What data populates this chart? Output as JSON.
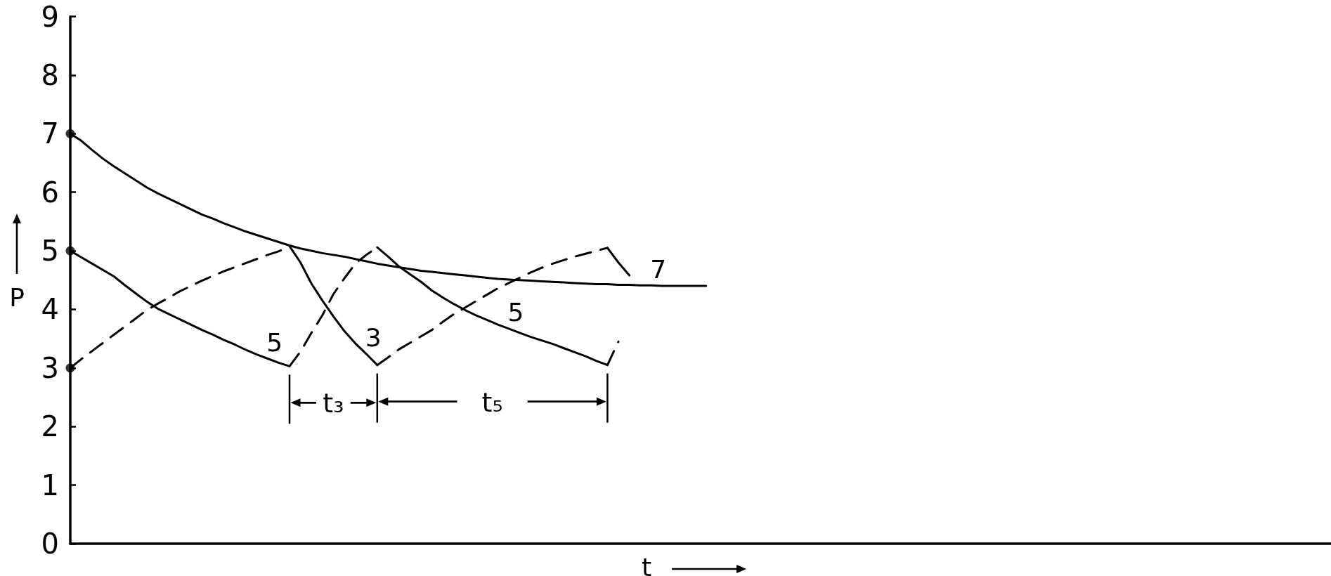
{
  "chart_data": {
    "type": "line",
    "xlabel": "t",
    "ylabel": "P",
    "categories": [
      null,
      null,
      null,
      null,
      null,
      null,
      null,
      null,
      null,
      null,
      null,
      null,
      null,
      null,
      null,
      null,
      null,
      null,
      null,
      null,
      null,
      null,
      null,
      null,
      null,
      null,
      null,
      null,
      null,
      null,
      null,
      null,
      null,
      null,
      null,
      null,
      null,
      null,
      null,
      null,
      null,
      null,
      null,
      null,
      null,
      null,
      null,
      null,
      null,
      null,
      null,
      null,
      null,
      null,
      null,
      null,
      null,
      null,
      null,
      null,
      null,
      null,
      null,
      null,
      null,
      null,
      null,
      null,
      null,
      null,
      null,
      null,
      null,
      null,
      null,
      null,
      null,
      null,
      null,
      null,
      null,
      null,
      null,
      null,
      null,
      null,
      null,
      null,
      null,
      null,
      null,
      null,
      null,
      null,
      null,
      null,
      null,
      null,
      null,
      null,
      null,
      null,
      null,
      null,
      null,
      null,
      null,
      null,
      null,
      null,
      null,
      null,
      null,
      null,
      null,
      null
    ],
    "ylim": [
      0,
      9
    ],
    "yticks": [
      0,
      1,
      2,
      3,
      4,
      5,
      6,
      7,
      8,
      9
    ],
    "tick_labels": "y",
    "grid": false,
    "legend": false,
    "series": [
      {
        "name": "7",
        "color": "#000000",
        "line_style": "solid",
        "values": [
          7.0,
          6.88,
          6.72,
          6.57,
          6.44,
          6.32,
          6.2,
          6.08,
          5.98,
          5.89,
          5.8,
          5.71,
          5.62,
          5.55,
          5.47,
          5.4,
          5.33,
          5.27,
          5.21,
          5.15,
          5.09,
          5.04,
          5.0,
          4.96,
          4.93,
          4.9,
          4.86,
          4.82,
          4.78,
          4.75,
          4.72,
          4.69,
          4.66,
          4.64,
          4.62,
          4.6,
          4.58,
          4.56,
          4.54,
          4.52,
          4.51,
          4.5,
          4.49,
          4.48,
          4.47,
          4.46,
          4.45,
          4.44,
          4.43,
          4.43,
          4.42,
          4.42,
          4.41,
          4.41,
          4.4,
          4.4,
          4.4,
          4.4,
          4.4,
          null,
          null,
          null,
          null,
          null,
          null,
          null,
          null,
          null,
          null,
          null,
          null,
          null,
          null,
          null,
          null,
          null,
          null,
          null,
          null,
          null,
          null,
          null,
          null,
          null,
          null,
          null,
          null,
          null,
          null,
          null,
          null,
          null,
          null,
          null,
          null,
          null,
          null,
          null,
          null,
          null,
          null,
          null,
          null,
          null,
          null,
          null,
          null,
          null,
          null,
          null,
          null,
          null,
          null,
          null,
          null,
          null
        ]
      },
      {
        "name": "5",
        "color": "#000000",
        "line_style": "solid",
        "values": [
          5.0,
          4.89,
          4.78,
          4.67,
          4.56,
          4.41,
          4.27,
          4.13,
          4.01,
          3.92,
          3.83,
          3.74,
          3.65,
          3.57,
          3.48,
          3.4,
          3.31,
          3.23,
          3.16,
          3.09,
          3.03,
          null,
          null,
          null,
          null,
          null,
          null,
          null,
          null,
          null,
          null,
          null,
          null,
          null,
          null,
          null,
          null,
          null,
          null,
          null,
          null,
          null,
          null,
          null,
          null,
          null,
          null,
          null,
          null,
          null,
          null,
          null,
          null,
          null,
          null,
          null,
          null,
          null,
          null,
          null,
          null,
          null,
          null,
          null,
          null,
          null,
          null,
          null,
          null,
          null,
          null,
          null,
          null,
          null,
          null,
          null,
          null,
          null,
          null,
          null,
          null,
          null,
          null,
          null,
          null,
          null,
          null,
          null,
          null,
          null,
          null,
          null,
          null,
          null,
          null,
          null,
          null,
          null,
          null,
          null,
          null,
          null,
          null,
          null,
          null,
          null,
          null,
          null,
          null,
          null,
          null,
          null,
          null,
          null,
          null,
          null
        ]
      },
      {
        "color": "#000000",
        "line_style": "dashed",
        "values": [
          3.0,
          3.15,
          3.29,
          3.43,
          3.57,
          3.71,
          3.85,
          3.99,
          4.1,
          4.2,
          4.31,
          4.4,
          4.49,
          4.57,
          4.65,
          4.72,
          4.79,
          4.86,
          4.93,
          4.99,
          5.08,
          null,
          null,
          null,
          null,
          null,
          null,
          null,
          null,
          null,
          null,
          null,
          null,
          null,
          null,
          null,
          null,
          null,
          null,
          null,
          null,
          null,
          null,
          null,
          null,
          null,
          null,
          null,
          null,
          null,
          null,
          null,
          null,
          null,
          null,
          null,
          null,
          null,
          null,
          null,
          null,
          null,
          null,
          null,
          null,
          null,
          null,
          null,
          null,
          null,
          null,
          null,
          null,
          null,
          null,
          null,
          null,
          null,
          null,
          null,
          null,
          null,
          null,
          null,
          null,
          null,
          null,
          null,
          null,
          null,
          null,
          null,
          null,
          null,
          null,
          null,
          null,
          null,
          null,
          null,
          null,
          null,
          null,
          null,
          null,
          null,
          null,
          null,
          null,
          null,
          null,
          null,
          null,
          null,
          null,
          null
        ]
      },
      {
        "name": "3",
        "color": "#000000",
        "line_style": "solid",
        "values": [
          null,
          null,
          null,
          null,
          null,
          null,
          null,
          null,
          null,
          null,
          null,
          null,
          null,
          null,
          null,
          null,
          null,
          null,
          null,
          null,
          5.08,
          4.8,
          4.44,
          4.15,
          3.88,
          3.63,
          3.42,
          3.24,
          3.05,
          null,
          null,
          null,
          null,
          null,
          null,
          null,
          null,
          null,
          null,
          null,
          null,
          null,
          null,
          null,
          null,
          null,
          null,
          null,
          null,
          null,
          null,
          null,
          null,
          null,
          null,
          null,
          null,
          null,
          null,
          null,
          null,
          null,
          null,
          null,
          null,
          null,
          null,
          null,
          null,
          null,
          null,
          null,
          null,
          null,
          null,
          null,
          null,
          null,
          null,
          null,
          null,
          null,
          null,
          null,
          null,
          null,
          null,
          null,
          null,
          null,
          null,
          null,
          null,
          null,
          null,
          null,
          null,
          null,
          null,
          null,
          null,
          null,
          null,
          null,
          null,
          null,
          null,
          null,
          null,
          null,
          null,
          null,
          null,
          null,
          null,
          null
        ]
      },
      {
        "color": "#000000",
        "line_style": "dashed",
        "values": [
          null,
          null,
          null,
          null,
          null,
          null,
          null,
          null,
          null,
          null,
          null,
          null,
          null,
          null,
          null,
          null,
          null,
          null,
          null,
          null,
          3.03,
          3.28,
          3.6,
          3.9,
          4.26,
          4.53,
          4.78,
          4.93,
          5.06,
          null,
          null,
          null,
          null,
          null,
          null,
          null,
          null,
          null,
          null,
          null,
          null,
          null,
          null,
          null,
          null,
          null,
          null,
          null,
          null,
          null,
          null,
          null,
          null,
          null,
          null,
          null,
          null,
          null,
          null,
          null,
          null,
          null,
          null,
          null,
          null,
          null,
          null,
          null,
          null,
          null,
          null,
          null,
          null,
          null,
          null,
          null,
          null,
          null,
          null,
          null,
          null,
          null,
          null,
          null,
          null,
          null,
          null,
          null,
          null,
          null,
          null,
          null,
          null,
          null,
          null,
          null,
          null,
          null,
          null,
          null,
          null,
          null,
          null,
          null,
          null,
          null,
          null,
          null,
          null,
          null,
          null,
          null,
          null,
          null,
          null,
          null
        ]
      },
      {
        "name": "5",
        "color": "#000000",
        "line_style": "solid",
        "values": [
          null,
          null,
          null,
          null,
          null,
          null,
          null,
          null,
          null,
          null,
          null,
          null,
          null,
          null,
          null,
          null,
          null,
          null,
          null,
          null,
          null,
          null,
          null,
          null,
          null,
          null,
          null,
          null,
          5.06,
          4.9,
          4.73,
          4.6,
          4.47,
          4.32,
          4.2,
          4.09,
          3.99,
          3.9,
          3.82,
          3.74,
          3.67,
          3.6,
          3.53,
          3.47,
          3.41,
          3.34,
          3.27,
          3.2,
          3.12,
          3.05,
          null,
          null,
          null,
          null,
          null,
          null,
          null,
          null,
          null,
          null,
          null,
          null,
          null,
          null,
          null,
          null,
          null,
          null,
          null,
          null,
          null,
          null,
          null,
          null,
          null,
          null,
          null,
          null,
          null,
          null,
          null,
          null,
          null,
          null,
          null,
          null,
          null,
          null,
          null,
          null,
          null,
          null,
          null,
          null,
          null,
          null,
          null,
          null,
          null,
          null,
          null,
          null,
          null,
          null,
          null,
          null,
          null,
          null,
          null,
          null,
          null,
          null,
          null,
          null,
          null,
          null
        ]
      },
      {
        "color": "#000000",
        "line_style": "dashed",
        "values": [
          null,
          null,
          null,
          null,
          null,
          null,
          null,
          null,
          null,
          null,
          null,
          null,
          null,
          null,
          null,
          null,
          null,
          null,
          null,
          null,
          null,
          null,
          null,
          null,
          null,
          null,
          null,
          null,
          3.05,
          3.18,
          3.32,
          3.43,
          3.54,
          3.65,
          3.79,
          3.92,
          4.03,
          4.14,
          4.25,
          4.36,
          4.45,
          4.54,
          4.63,
          4.71,
          4.78,
          4.84,
          4.9,
          4.95,
          5.0,
          5.05,
          null,
          null,
          null,
          null,
          null,
          null,
          null,
          null,
          null,
          null,
          null,
          null,
          null,
          null,
          null,
          null,
          null,
          null,
          null,
          null,
          null,
          null,
          null,
          null,
          null,
          null,
          null,
          null,
          null,
          null,
          null,
          null,
          null,
          null,
          null,
          null,
          null,
          null,
          null,
          null,
          null,
          null,
          null,
          null,
          null,
          null,
          null,
          null,
          null,
          null,
          null,
          null,
          null,
          null,
          null,
          null,
          null,
          null,
          null,
          null,
          null,
          null,
          null,
          null,
          null,
          null
        ]
      },
      {
        "color": "#000000",
        "line_style": "solid",
        "values": [
          null,
          null,
          null,
          null,
          null,
          null,
          null,
          null,
          null,
          null,
          null,
          null,
          null,
          null,
          null,
          null,
          null,
          null,
          null,
          null,
          null,
          null,
          null,
          null,
          null,
          null,
          null,
          null,
          null,
          null,
          null,
          null,
          null,
          null,
          null,
          null,
          null,
          null,
          null,
          null,
          null,
          null,
          null,
          null,
          null,
          null,
          null,
          null,
          null,
          5.05,
          4.8,
          4.58,
          null,
          null,
          null,
          null,
          null,
          null,
          null,
          null,
          null,
          null,
          null,
          null,
          null,
          null,
          null,
          null,
          null,
          null,
          null,
          null,
          null,
          null,
          null,
          null,
          null,
          null,
          null,
          null,
          null,
          null,
          null,
          null,
          null,
          null,
          null,
          null,
          null,
          null,
          null,
          null,
          null,
          null,
          null,
          null,
          null,
          null,
          null,
          null,
          null,
          null,
          null,
          null,
          null,
          null,
          null,
          null,
          null,
          null,
          null,
          null,
          null,
          null,
          null,
          null
        ]
      },
      {
        "color": "#000000",
        "line_style": "dashed",
        "values": [
          null,
          null,
          null,
          null,
          null,
          null,
          null,
          null,
          null,
          null,
          null,
          null,
          null,
          null,
          null,
          null,
          null,
          null,
          null,
          null,
          null,
          null,
          null,
          null,
          null,
          null,
          null,
          null,
          null,
          null,
          null,
          null,
          null,
          null,
          null,
          null,
          null,
          null,
          null,
          null,
          null,
          null,
          null,
          null,
          null,
          null,
          null,
          null,
          null,
          3.05,
          3.45,
          null,
          null,
          null,
          null,
          null,
          null,
          null,
          null,
          null,
          null,
          null,
          null,
          null,
          null,
          null,
          null,
          null,
          null,
          null,
          null,
          null,
          null,
          null,
          null,
          null,
          null,
          null,
          null,
          null,
          null,
          null,
          null,
          null,
          null,
          null,
          null,
          null,
          null,
          null,
          null,
          null,
          null,
          null,
          null,
          null,
          null,
          null,
          null,
          null,
          null,
          null,
          null,
          null,
          null,
          null,
          null,
          null,
          null,
          null,
          null,
          null,
          null,
          null,
          null,
          null
        ]
      },
      {
        "type": "scatter",
        "marker": "circle",
        "color": "#000000",
        "values": [
          7.0,
          null,
          null,
          null,
          null,
          null,
          null,
          null,
          null,
          null,
          null,
          null,
          null,
          null,
          null,
          null,
          null,
          null,
          null,
          null,
          null,
          null,
          null,
          null,
          null,
          null,
          null,
          null,
          null,
          null,
          null,
          null,
          null,
          null,
          null,
          null,
          null,
          null,
          null,
          null,
          null,
          null,
          null,
          null,
          null,
          null,
          null,
          null,
          null,
          null,
          null,
          null,
          null,
          null,
          null,
          null,
          null,
          null,
          null,
          null,
          null,
          null,
          null,
          null,
          null,
          null,
          null,
          null,
          null,
          null,
          null,
          null,
          null,
          null,
          null,
          null,
          null,
          null,
          null,
          null,
          null,
          null,
          null,
          null,
          null,
          null,
          null,
          null,
          null,
          null,
          null,
          null,
          null,
          null,
          null,
          null,
          null,
          null,
          null,
          null,
          null,
          null,
          null,
          null,
          null,
          null,
          null,
          null,
          null,
          null,
          null,
          null,
          null,
          null,
          null,
          null
        ]
      },
      {
        "type": "scatter",
        "marker": "circle",
        "color": "#000000",
        "values": [
          5.0,
          null,
          null,
          null,
          null,
          null,
          null,
          null,
          null,
          null,
          null,
          null,
          null,
          null,
          null,
          null,
          null,
          null,
          null,
          null,
          null,
          null,
          null,
          null,
          null,
          null,
          null,
          null,
          null,
          null,
          null,
          null,
          null,
          null,
          null,
          null,
          null,
          null,
          null,
          null,
          null,
          null,
          null,
          null,
          null,
          null,
          null,
          null,
          null,
          null,
          null,
          null,
          null,
          null,
          null,
          null,
          null,
          null,
          null,
          null,
          null,
          null,
          null,
          null,
          null,
          null,
          null,
          null,
          null,
          null,
          null,
          null,
          null,
          null,
          null,
          null,
          null,
          null,
          null,
          null,
          null,
          null,
          null,
          null,
          null,
          null,
          null,
          null,
          null,
          null,
          null,
          null,
          null,
          null,
          null,
          null,
          null,
          null,
          null,
          null,
          null,
          null,
          null,
          null,
          null,
          null,
          null,
          null,
          null,
          null,
          null,
          null,
          null,
          null,
          null,
          null
        ]
      },
      {
        "type": "scatter",
        "marker": "circle",
        "color": "#000000",
        "values": [
          3.0,
          null,
          null,
          null,
          null,
          null,
          null,
          null,
          null,
          null,
          null,
          null,
          null,
          null,
          null,
          null,
          null,
          null,
          null,
          null,
          null,
          null,
          null,
          null,
          null,
          null,
          null,
          null,
          null,
          null,
          null,
          null,
          null,
          null,
          null,
          null,
          null,
          null,
          null,
          null,
          null,
          null,
          null,
          null,
          null,
          null,
          null,
          null,
          null,
          null,
          null,
          null,
          null,
          null,
          null,
          null,
          null,
          null,
          null,
          null,
          null,
          null,
          null,
          null,
          null,
          null,
          null,
          null,
          null,
          null,
          null,
          null,
          null,
          null,
          null,
          null,
          null,
          null,
          null,
          null,
          null,
          null,
          null,
          null,
          null,
          null,
          null,
          null,
          null,
          null,
          null,
          null,
          null,
          null,
          null,
          null,
          null,
          null,
          null,
          null,
          null,
          null,
          null,
          null,
          null,
          null,
          null,
          null,
          null,
          null,
          null,
          null,
          null,
          null,
          null,
          null
        ]
      }
    ],
    "annotations": [
      "t₃",
      "t₅"
    ]
  }
}
